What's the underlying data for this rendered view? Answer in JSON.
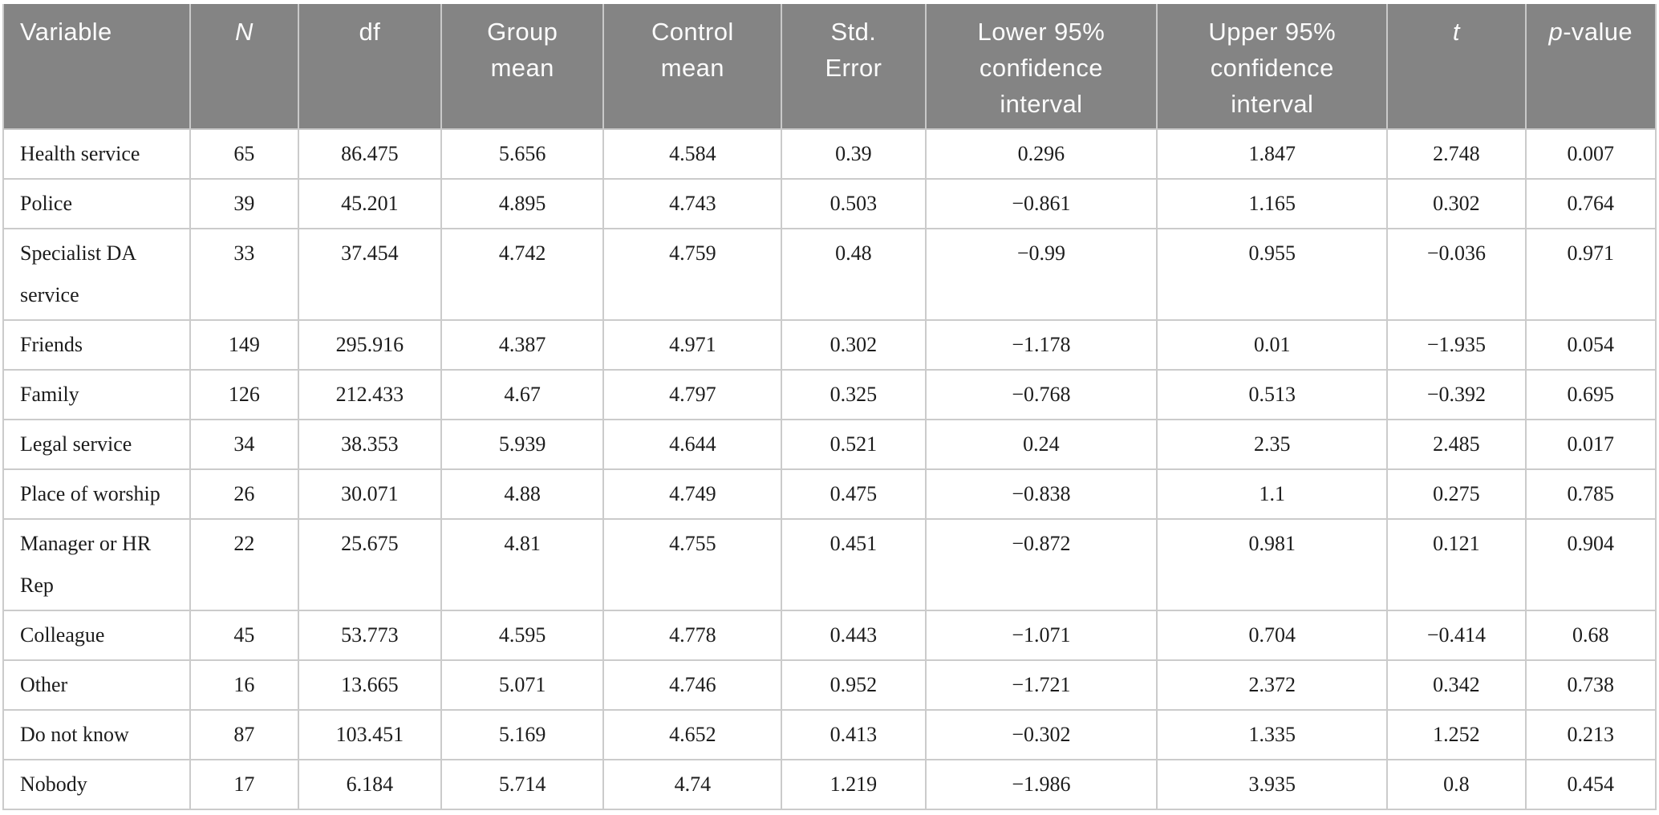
{
  "colors": {
    "header_bg": "#848484",
    "header_text": "#fbfbfb",
    "body_text": "#1c1c1c",
    "grid_border": "#cbcbcb"
  },
  "table": {
    "columns": [
      {
        "id": "variable",
        "label": "Variable",
        "lines": [
          "Variable"
        ],
        "italic": false
      },
      {
        "id": "n",
        "label": "N",
        "lines": [
          "N"
        ],
        "italic": true
      },
      {
        "id": "df",
        "label": "df",
        "lines": [
          "df"
        ],
        "italic": false
      },
      {
        "id": "group-mean",
        "label": "Group mean",
        "lines": [
          "Group",
          "mean"
        ],
        "italic": false
      },
      {
        "id": "control-mean",
        "label": "Control mean",
        "lines": [
          "Control",
          "mean"
        ],
        "italic": false
      },
      {
        "id": "std-error",
        "label": "Std. Error",
        "lines": [
          "Std.",
          "Error"
        ],
        "italic": false
      },
      {
        "id": "lower-ci",
        "label": "Lower 95% confidence interval",
        "lines": [
          "Lower 95%",
          "confidence",
          "interval"
        ],
        "italic": false
      },
      {
        "id": "upper-ci",
        "label": "Upper 95% confidence interval",
        "lines": [
          "Upper 95%",
          "confidence",
          "interval"
        ],
        "italic": false
      },
      {
        "id": "t",
        "label": "t",
        "lines": [
          "t"
        ],
        "italic": true
      },
      {
        "id": "p-value",
        "label": "p-value",
        "lines": [
          "p-value"
        ],
        "italic": false,
        "italic_first_char": true
      }
    ],
    "rows": [
      [
        "Health service",
        "65",
        "86.475",
        "5.656",
        "4.584",
        "0.39",
        "0.296",
        "1.847",
        "2.748",
        "0.007"
      ],
      [
        "Police",
        "39",
        "45.201",
        "4.895",
        "4.743",
        "0.503",
        "−0.861",
        "1.165",
        "0.302",
        "0.764"
      ],
      [
        "Specialist DA service",
        "33",
        "37.454",
        "4.742",
        "4.759",
        "0.48",
        "−0.99",
        "0.955",
        "−0.036",
        "0.971"
      ],
      [
        "Friends",
        "149",
        "295.916",
        "4.387",
        "4.971",
        "0.302",
        "−1.178",
        "0.01",
        "−1.935",
        "0.054"
      ],
      [
        "Family",
        "126",
        "212.433",
        "4.67",
        "4.797",
        "0.325",
        "−0.768",
        "0.513",
        "−0.392",
        "0.695"
      ],
      [
        "Legal service",
        "34",
        "38.353",
        "5.939",
        "4.644",
        "0.521",
        "0.24",
        "2.35",
        "2.485",
        "0.017"
      ],
      [
        "Place of worship",
        "26",
        "30.071",
        "4.88",
        "4.749",
        "0.475",
        "−0.838",
        "1.1",
        "0.275",
        "0.785"
      ],
      [
        "Manager or HR Rep",
        "22",
        "25.675",
        "4.81",
        "4.755",
        "0.451",
        "−0.872",
        "0.981",
        "0.121",
        "0.904"
      ],
      [
        "Colleague",
        "45",
        "53.773",
        "4.595",
        "4.778",
        "0.443",
        "−1.071",
        "0.704",
        "−0.414",
        "0.68"
      ],
      [
        "Other",
        "16",
        "13.665",
        "5.071",
        "4.746",
        "0.952",
        "−1.721",
        "2.372",
        "0.342",
        "0.738"
      ],
      [
        "Do not know",
        "87",
        "103.451",
        "5.169",
        "4.652",
        "0.413",
        "−0.302",
        "1.335",
        "1.252",
        "0.213"
      ],
      [
        "Nobody",
        "17",
        "6.184",
        "5.714",
        "4.74",
        "1.219",
        "−1.986",
        "3.935",
        "0.8",
        "0.454"
      ]
    ]
  }
}
